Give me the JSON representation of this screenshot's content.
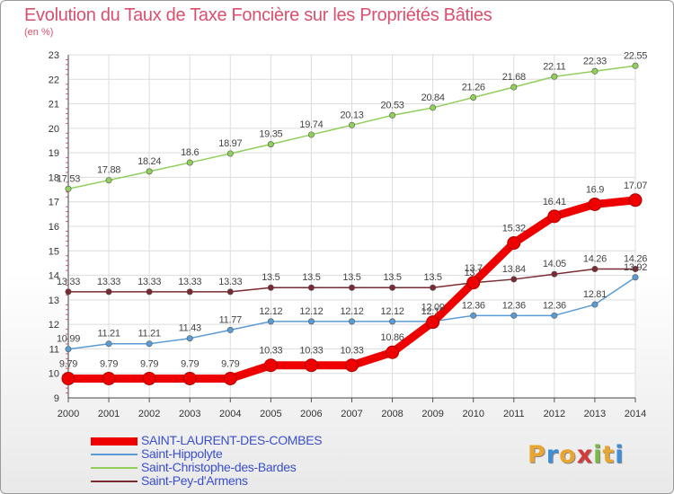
{
  "title": "Evolution du Taux de Taxe Foncière sur les Propriétés Bâties",
  "subtitle": "(en %)",
  "brand": {
    "letters": [
      "P",
      "r",
      "o",
      "x",
      "i",
      "t",
      "i"
    ],
    "colors": [
      "#e8a530",
      "#3d8fd6",
      "#e8a530",
      "#d43a3a",
      "#79b843",
      "#e8a530",
      "#3d8fd6"
    ]
  },
  "chart_data": {
    "type": "line",
    "title": "Evolution du Taux de Taxe Foncière sur les Propriétés Bâties",
    "ylabel": "(en %)",
    "x": [
      "2000",
      "2001",
      "2002",
      "2003",
      "2004",
      "2005",
      "2006",
      "2007",
      "2008",
      "2009",
      "2010",
      "2011",
      "2012",
      "2013",
      "2014"
    ],
    "ylim": [
      9,
      23
    ],
    "yticks": [
      "9",
      "10",
      "11",
      "12",
      "13",
      "14",
      "15",
      "16",
      "17",
      "18",
      "19",
      "20",
      "21",
      "22",
      "23"
    ],
    "grid": true,
    "legend": "bottom-left",
    "series": [
      {
        "name": "SAINT-LAURENT-DES-COMBES",
        "color": "#ee0000",
        "values": [
          9.79,
          9.79,
          9.79,
          9.79,
          9.79,
          10.33,
          10.33,
          10.33,
          10.86,
          12.09,
          13.7,
          15.32,
          16.41,
          16.9,
          17.07
        ],
        "labels": [
          "9.79",
          "9.79",
          "9.79",
          "9.79",
          "9.79",
          "10.33",
          "10.33",
          "10.33",
          "10.86",
          "12.09",
          "13.7",
          "15.32",
          "16.41",
          "16.9",
          "17.07"
        ]
      },
      {
        "name": "Saint-Hippolyte",
        "color": "#5a9bd5",
        "values": [
          10.99,
          11.21,
          11.21,
          11.43,
          11.77,
          12.12,
          12.12,
          12.12,
          12.12,
          12.12,
          12.36,
          12.36,
          12.36,
          12.81,
          13.92
        ],
        "labels": [
          "10.99",
          "11.21",
          "11.21",
          "11.43",
          "11.77",
          "12.12",
          "12.12",
          "12.12",
          "12.12",
          "12.12",
          "12.36",
          "12.36",
          "12.36",
          "12.81",
          "13.92"
        ]
      },
      {
        "name": "Saint-Christophe-des-Bardes",
        "color": "#8fcf5a",
        "values": [
          17.53,
          17.88,
          18.24,
          18.6,
          18.97,
          19.35,
          19.74,
          20.13,
          20.53,
          20.84,
          21.26,
          21.68,
          22.11,
          22.33,
          22.55
        ],
        "labels": [
          "17.53",
          "17.88",
          "18.24",
          "18.6",
          "18.97",
          "19.35",
          "19.74",
          "20.13",
          "20.53",
          "20.84",
          "21.26",
          "21.68",
          "22.11",
          "22.33",
          "22.55"
        ]
      },
      {
        "name": "Saint-Pey-d'Armens",
        "color": "#7a2a32",
        "values": [
          13.33,
          13.33,
          13.33,
          13.33,
          13.33,
          13.5,
          13.5,
          13.5,
          13.5,
          13.5,
          13.7,
          13.84,
          14.05,
          14.26,
          14.26
        ],
        "labels": [
          "13.33",
          "13.33",
          "13.33",
          "13.33",
          "13.33",
          "13.5",
          "13.5",
          "13.5",
          "13.5",
          "13.5",
          "13.7",
          "13.84",
          "14.05",
          "14.26",
          "14.26"
        ]
      }
    ]
  }
}
